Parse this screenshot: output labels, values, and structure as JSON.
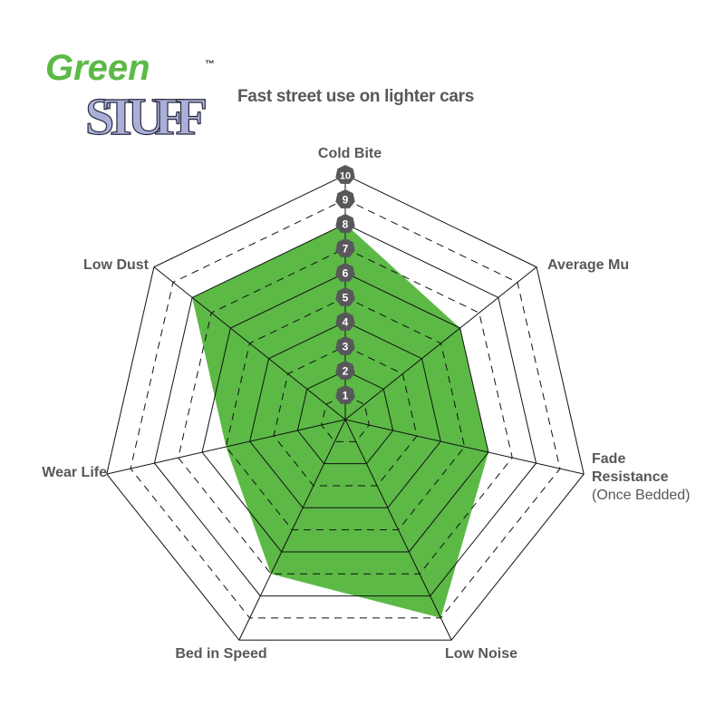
{
  "logo": {
    "line1": "Green",
    "line2": "STUFF",
    "tm": "™",
    "green": "#5cb946",
    "lavender": "#aab0d8"
  },
  "subtitle": "Fast street use on lighter cars",
  "chart_data": {
    "type": "radar",
    "title": "",
    "axes": [
      {
        "label": "Cold Bite",
        "sub": ""
      },
      {
        "label": "Average Mu",
        "sub": ""
      },
      {
        "label": "Fade Resistance",
        "sub": "(Once Bedded)"
      },
      {
        "label": "Low Noise",
        "sub": ""
      },
      {
        "label": "Bed in Speed",
        "sub": ""
      },
      {
        "label": "Wear Life",
        "sub": ""
      },
      {
        "label": "Low Dust",
        "sub": ""
      }
    ],
    "values": [
      8,
      6,
      6,
      9,
      7,
      5,
      8
    ],
    "range": [
      0,
      10
    ],
    "ticks": [
      "1",
      "2",
      "3",
      "4",
      "5",
      "6",
      "7",
      "8",
      "9",
      "10"
    ],
    "grid": "solid at even levels, dashed at odd levels",
    "fill_color": "#5cb946",
    "tick_badge_color": "#58585a"
  }
}
